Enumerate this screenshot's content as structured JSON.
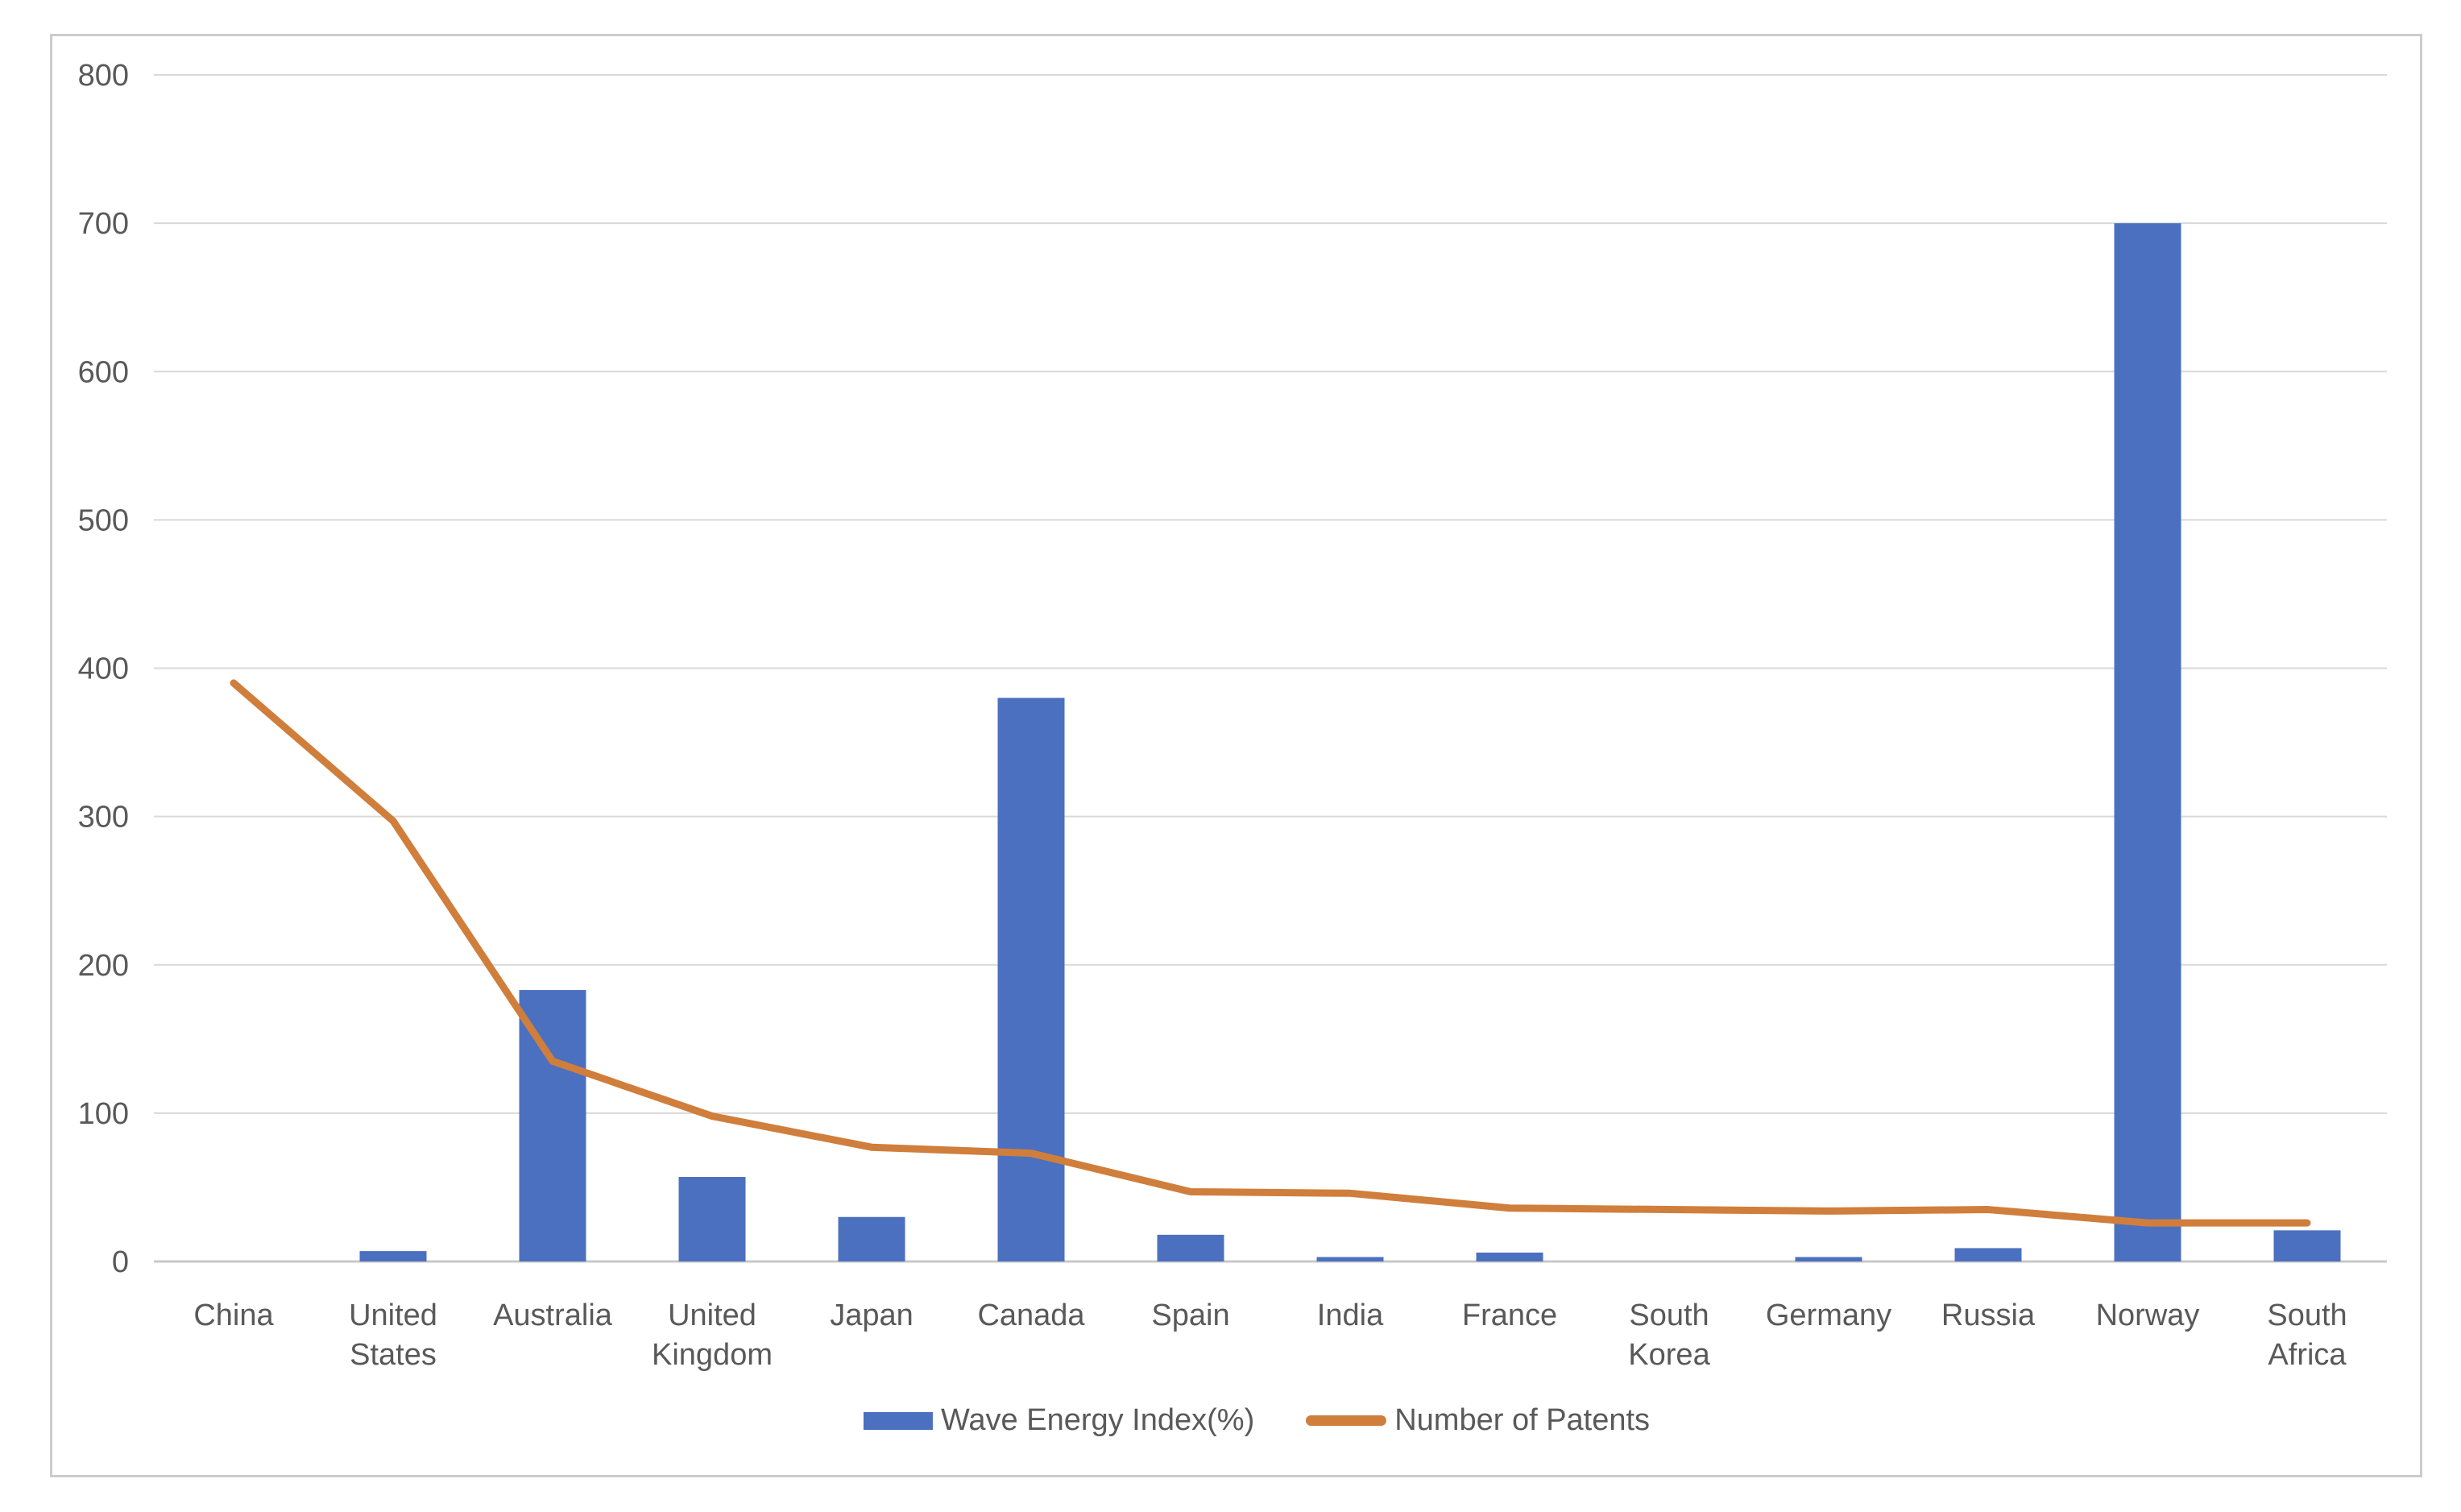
{
  "chart_data": {
    "type": "bar",
    "subtype": "bar-line-combo",
    "title": "",
    "categories": [
      "China",
      "United States",
      "Australia",
      "United Kingdom",
      "Japan",
      "Canada",
      "Spain",
      "India",
      "France",
      "South Korea",
      "Germany",
      "Russia",
      "Norway",
      "South Africa"
    ],
    "series": [
      {
        "name": "Wave Energy Index(%)",
        "type": "bar",
        "color": "#4c70c0",
        "values": [
          0,
          7,
          183,
          57,
          30,
          380,
          18,
          3,
          6,
          0,
          3,
          9,
          700,
          21
        ]
      },
      {
        "name": "Number of Patents",
        "type": "line",
        "color": "#d07e3c",
        "values": [
          390,
          297,
          135,
          98,
          77,
          73,
          47,
          46,
          36,
          35,
          34,
          35,
          26,
          26
        ]
      }
    ],
    "ylim": [
      0,
      800
    ],
    "yticks": [
      0,
      100,
      200,
      300,
      400,
      500,
      600,
      700,
      800
    ],
    "xlabel": "",
    "ylabel": "",
    "grid": true,
    "legend_position": "bottom",
    "grid_color": "#d9d9d9",
    "axis_color": "#c8c8c8",
    "text_color": "#595959",
    "frame_color": "#cccccc"
  }
}
